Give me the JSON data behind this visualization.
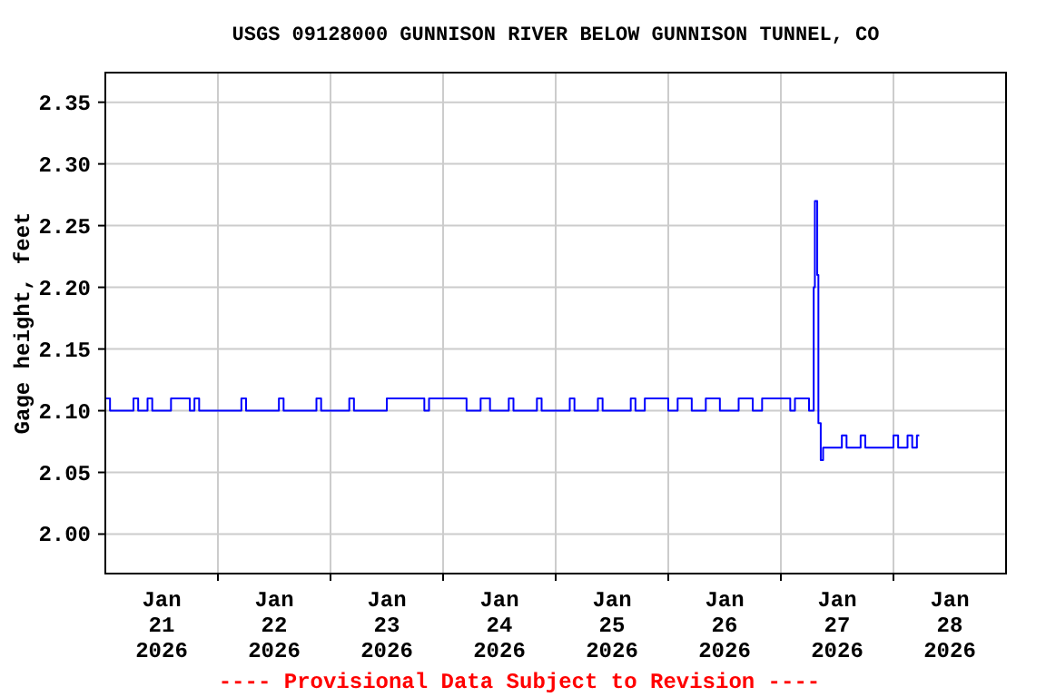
{
  "chart_data": {
    "type": "step",
    "title": "USGS 09128000 GUNNISON RIVER BELOW GUNNISON TUNNEL, CO",
    "ylabel": "Gage height, feet",
    "annotations": [
      "---- Provisional Data Subject to Revision ----"
    ],
    "xlim": [
      "2026-01-21T00:00",
      "2026-01-29T00:00"
    ],
    "xticks": [
      {
        "value": "2026-01-21T12:00",
        "label": "Jan\n21\n2026"
      },
      {
        "value": "2026-01-22T00:00",
        "label": null
      },
      {
        "value": "2026-01-22T12:00",
        "label": "Jan\n22\n2026"
      },
      {
        "value": "2026-01-23T00:00",
        "label": null
      },
      {
        "value": "2026-01-23T12:00",
        "label": "Jan\n23\n2026"
      },
      {
        "value": "2026-01-24T00:00",
        "label": null
      },
      {
        "value": "2026-01-24T12:00",
        "label": "Jan\n24\n2026"
      },
      {
        "value": "2026-01-25T00:00",
        "label": null
      },
      {
        "value": "2026-01-25T12:00",
        "label": "Jan\n25\n2026"
      },
      {
        "value": "2026-01-26T00:00",
        "label": null
      },
      {
        "value": "2026-01-26T12:00",
        "label": "Jan\n26\n2026"
      },
      {
        "value": "2026-01-27T00:00",
        "label": null
      },
      {
        "value": "2026-01-27T12:00",
        "label": "Jan\n27\n2026"
      },
      {
        "value": "2026-01-28T00:00",
        "label": null
      },
      {
        "value": "2026-01-28T12:00",
        "label": "Jan\n28\n2026"
      }
    ],
    "ylim": [
      1.968,
      2.374
    ],
    "yticks": [
      {
        "value": 2.0,
        "label": "2.00"
      },
      2.05,
      {
        "value": 2.1,
        "label": "2.10"
      },
      2.15,
      {
        "value": 2.2,
        "label": "2.20"
      },
      2.25,
      {
        "value": 2.3,
        "label": "2.30"
      },
      2.35
    ],
    "grid": true,
    "marker": "none",
    "line_style": "solid",
    "series": [
      {
        "color": "#0000ff",
        "x": [
          "2026-01-21T00:00",
          "2026-01-21T01:00",
          "2026-01-21T06:00",
          "2026-01-21T07:00",
          "2026-01-21T09:00",
          "2026-01-21T10:00",
          "2026-01-21T14:00",
          "2026-01-21T18:00",
          "2026-01-21T19:00",
          "2026-01-21T20:00",
          "2026-01-22T05:00",
          "2026-01-22T06:00",
          "2026-01-22T13:00",
          "2026-01-22T14:00",
          "2026-01-22T21:00",
          "2026-01-22T22:00",
          "2026-01-23T04:00",
          "2026-01-23T05:00",
          "2026-01-23T12:00",
          "2026-01-23T20:00",
          "2026-01-23T21:00",
          "2026-01-24T05:00",
          "2026-01-24T08:00",
          "2026-01-24T10:00",
          "2026-01-24T14:00",
          "2026-01-24T15:00",
          "2026-01-24T20:00",
          "2026-01-24T21:00",
          "2026-01-25T03:00",
          "2026-01-25T04:00",
          "2026-01-25T09:00",
          "2026-01-25T10:00",
          "2026-01-25T16:00",
          "2026-01-25T17:00",
          "2026-01-25T19:00",
          "2026-01-26T00:00",
          "2026-01-26T02:00",
          "2026-01-26T05:00",
          "2026-01-26T08:00",
          "2026-01-26T11:00",
          "2026-01-26T15:00",
          "2026-01-26T18:00",
          "2026-01-26T20:00",
          "2026-01-27T02:00",
          "2026-01-27T03:00",
          "2026-01-27T06:00",
          "2026-01-27T07:00",
          "2026-01-27T07:15",
          "2026-01-27T07:45",
          "2026-01-27T08:00",
          "2026-01-27T08:30",
          "2026-01-27T09:00",
          "2026-01-27T13:00",
          "2026-01-27T14:00",
          "2026-01-27T17:00",
          "2026-01-27T18:00",
          "2026-01-28T00:00",
          "2026-01-28T01:00",
          "2026-01-28T03:00",
          "2026-01-28T04:00",
          "2026-01-28T05:00",
          "2026-01-28T05:30"
        ],
        "values": [
          2.11,
          2.1,
          2.11,
          2.1,
          2.11,
          2.1,
          2.11,
          2.1,
          2.11,
          2.1,
          2.11,
          2.1,
          2.11,
          2.1,
          2.11,
          2.1,
          2.11,
          2.1,
          2.11,
          2.1,
          2.11,
          2.1,
          2.11,
          2.1,
          2.11,
          2.1,
          2.11,
          2.1,
          2.11,
          2.1,
          2.11,
          2.1,
          2.11,
          2.1,
          2.11,
          2.1,
          2.11,
          2.1,
          2.11,
          2.1,
          2.11,
          2.1,
          2.11,
          2.1,
          2.11,
          2.1,
          2.2,
          2.27,
          2.21,
          2.09,
          2.06,
          2.07,
          2.08,
          2.07,
          2.08,
          2.07,
          2.08,
          2.07,
          2.08,
          2.07,
          2.08,
          2.08
        ]
      }
    ]
  }
}
